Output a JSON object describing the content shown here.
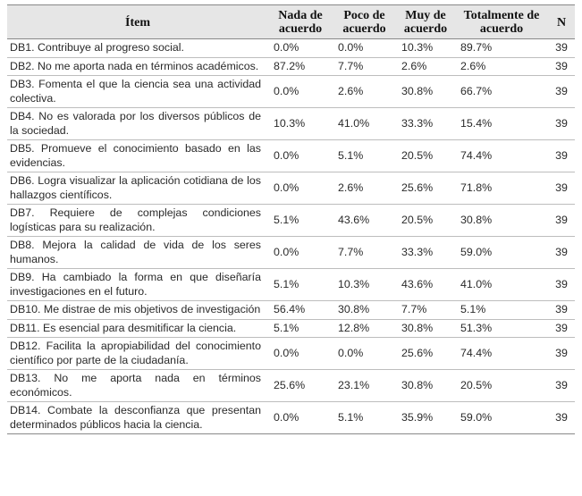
{
  "headers": {
    "item": "Ítem",
    "nada": "Nada de acuerdo",
    "poco": "Poco de acuerdo",
    "muy": "Muy de acuerdo",
    "total": "Totalmente de acuerdo",
    "n": "N"
  },
  "rows": [
    {
      "item": "DB1. Contribuye al progreso social.",
      "nada": "0.0%",
      "poco": "0.0%",
      "muy": "10.3%",
      "total": "89.7%",
      "n": "39"
    },
    {
      "item": "DB2. No me aporta nada en términos académicos.",
      "nada": "87.2%",
      "poco": "7.7%",
      "muy": "2.6%",
      "total": "2.6%",
      "n": "39"
    },
    {
      "item": "DB3. Fomenta el que la ciencia sea una actividad colectiva.",
      "nada": "0.0%",
      "poco": "2.6%",
      "muy": "30.8%",
      "total": "66.7%",
      "n": "39"
    },
    {
      "item": "DB4. No es valorada por los diversos públicos de la sociedad.",
      "nada": "10.3%",
      "poco": "41.0%",
      "muy": "33.3%",
      "total": "15.4%",
      "n": "39"
    },
    {
      "item": "DB5. Promueve el conocimiento basado en las evidencias.",
      "nada": "0.0%",
      "poco": "5.1%",
      "muy": "20.5%",
      "total": "74.4%",
      "n": "39"
    },
    {
      "item": "DB6. Logra visualizar la aplicación cotidiana de los hallazgos científicos.",
      "nada": "0.0%",
      "poco": "2.6%",
      "muy": "25.6%",
      "total": "71.8%",
      "n": "39"
    },
    {
      "item": "DB7. Requiere de complejas condiciones logísticas para su realización.",
      "nada": "5.1%",
      "poco": "43.6%",
      "muy": "20.5%",
      "total": "30.8%",
      "n": "39"
    },
    {
      "item": "DB8. Mejora la calidad de vida de los seres humanos.",
      "nada": "0.0%",
      "poco": "7.7%",
      "muy": "33.3%",
      "total": "59.0%",
      "n": "39"
    },
    {
      "item": "DB9. Ha cambiado la forma en que diseñaría investigaciones en el futuro.",
      "nada": "5.1%",
      "poco": "10.3%",
      "muy": "43.6%",
      "total": "41.0%",
      "n": "39"
    },
    {
      "item": "DB10. Me distrae de mis objetivos de investigación",
      "nada": "56.4%",
      "poco": "30.8%",
      "muy": "7.7%",
      "total": "5.1%",
      "n": "39"
    },
    {
      "item": "DB11. Es esencial para desmitificar la ciencia.",
      "nada": "5.1%",
      "poco": "12.8%",
      "muy": "30.8%",
      "total": "51.3%",
      "n": "39"
    },
    {
      "item": "DB12. Facilita la apropiabilidad del conocimiento científico por parte de la ciudadanía.",
      "nada": "0.0%",
      "poco": "0.0%",
      "muy": "25.6%",
      "total": "74.4%",
      "n": "39"
    },
    {
      "item": "DB13. No me aporta nada en términos económicos.",
      "nada": "25.6%",
      "poco": "23.1%",
      "muy": "30.8%",
      "total": "20.5%",
      "n": "39"
    },
    {
      "item": "DB14. Combate la desconfianza que presentan determinados públicos hacia la ciencia.",
      "nada": "0.0%",
      "poco": "5.1%",
      "muy": "35.9%",
      "total": "59.0%",
      "n": "39"
    }
  ]
}
